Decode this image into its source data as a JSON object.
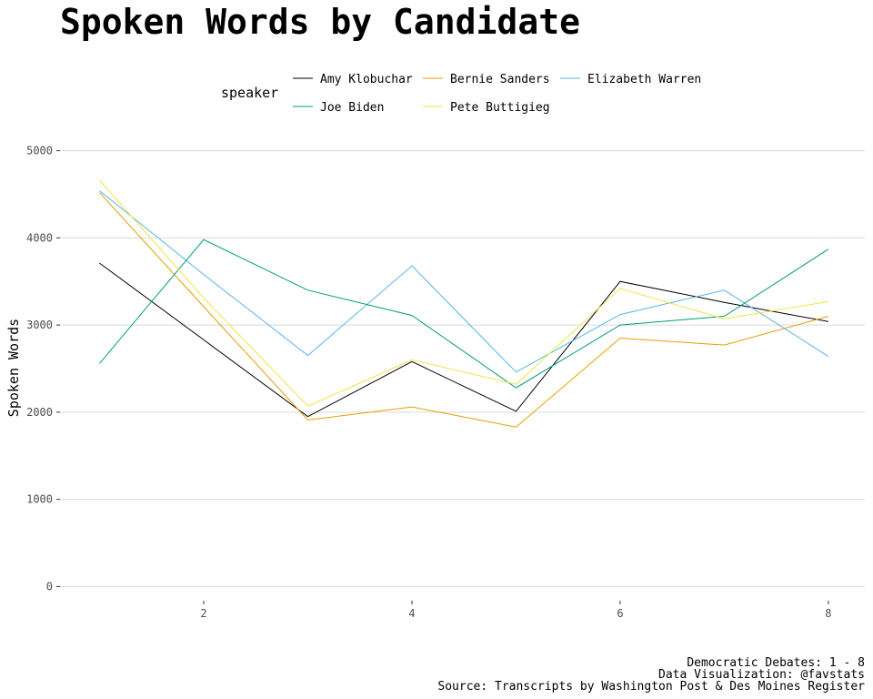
{
  "chart_data": {
    "type": "line",
    "title": "Spoken Words by Candidate",
    "xlabel": "",
    "ylabel": "Spoken Words",
    "x": [
      1,
      2,
      3,
      4,
      5,
      6,
      7,
      8
    ],
    "xticks": [
      2,
      4,
      6,
      8
    ],
    "yticks": [
      0,
      1000,
      2000,
      3000,
      4000,
      5000
    ],
    "xlim": [
      0.62,
      8.35
    ],
    "ylim": [
      -215,
      5215
    ],
    "grid": "horizontal",
    "legend": {
      "title": "speaker",
      "placement": "top"
    },
    "series": [
      {
        "name": "Amy Klobuchar",
        "color": "#000000",
        "values": [
          3710,
          2830,
          1950,
          2580,
          2010,
          3500,
          3260,
          3040
        ]
      },
      {
        "name": "Bernie Sanders",
        "color": "#E69F00",
        "values": [
          4520,
          3210,
          1910,
          2060,
          1830,
          2850,
          2770,
          3100
        ]
      },
      {
        "name": "Elizabeth Warren",
        "color": "#56B4E9",
        "values": [
          4540,
          3580,
          2650,
          3680,
          2460,
          3120,
          3400,
          2640
        ]
      },
      {
        "name": "Joe Biden",
        "color": "#009E73",
        "values": [
          2560,
          3980,
          3400,
          3110,
          2280,
          3000,
          3100,
          3870
        ]
      },
      {
        "name": "Pete Buttigieg",
        "color": "#F0E442",
        "values": [
          4660,
          3310,
          2070,
          2600,
          2320,
          3420,
          3070,
          3270
        ]
      }
    ],
    "caption": [
      "Democratic Debates: 1 - 8",
      "Data Visualization: @favstats",
      "Source: Transcripts by Washington Post & Des Moines Register"
    ]
  }
}
